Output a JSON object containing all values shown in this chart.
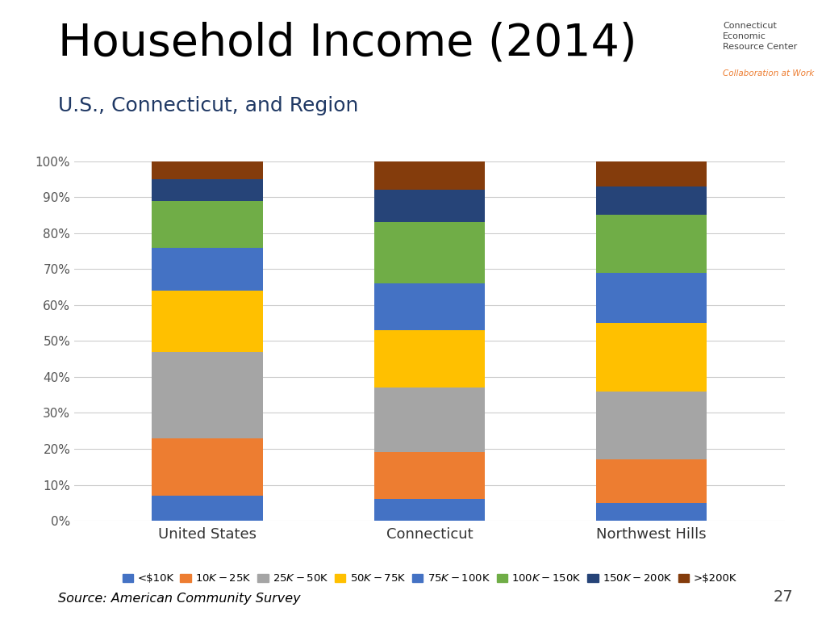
{
  "title": "Household Income (2014)",
  "subtitle": "U.S., Connecticut, and Region",
  "categories": [
    "United States",
    "Connecticut",
    "Northwest Hills"
  ],
  "segments": [
    {
      "label": "<$10K",
      "color": "#4472C4",
      "values": [
        7,
        6,
        5
      ]
    },
    {
      "label": "$10K-$25K",
      "color": "#ED7D31",
      "values": [
        16,
        13,
        12
      ]
    },
    {
      "label": "$25K-$50K",
      "color": "#A5A5A5",
      "values": [
        24,
        18,
        19
      ]
    },
    {
      "label": "$50K-$75K",
      "color": "#FFC000",
      "values": [
        17,
        16,
        19
      ]
    },
    {
      "label": "$75K-$100K",
      "color": "#4472C4",
      "values": [
        12,
        13,
        14
      ]
    },
    {
      "label": "$100K-$150K",
      "color": "#70AD47",
      "values": [
        13,
        17,
        16
      ]
    },
    {
      "label": "$150K-$200K",
      "color": "#264478",
      "values": [
        6,
        9,
        8
      ]
    },
    {
      "label": ">$200K",
      "color": "#843C0C",
      "values": [
        5,
        9,
        7
      ]
    }
  ],
  "segment_colors": [
    "#4472C4",
    "#ED7D31",
    "#A5A5A5",
    "#FFC000",
    "#4472C4",
    "#70AD47",
    "#264478",
    "#843C0C"
  ],
  "legend_colors": [
    "#4472C4",
    "#ED7D31",
    "#A5A5A5",
    "#FFC000",
    "#4472C4",
    "#70AD47",
    "#264478",
    "#843C0C"
  ],
  "source": "Source: American Community Survey",
  "page": "27",
  "background_color": "#FFFFFF",
  "grid_color": "#CCCCCC",
  "ylim": [
    0,
    100
  ],
  "ytick_labels": [
    "0%",
    "10%",
    "20%",
    "30%",
    "40%",
    "50%",
    "60%",
    "70%",
    "80%",
    "90%",
    "100%"
  ],
  "title_fontsize": 40,
  "subtitle_fontsize": 18,
  "subtitle_color": "#1F3864",
  "bar_width": 0.5,
  "title_color": "#000000"
}
